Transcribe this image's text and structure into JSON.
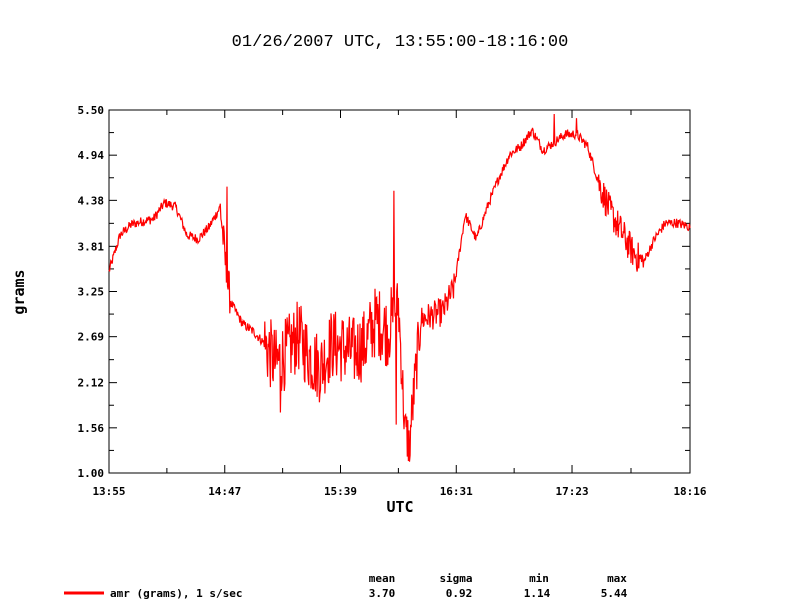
{
  "chart_data": {
    "type": "line",
    "title": "01/26/2007  UTC, 13:55:00-18:16:00",
    "xlabel": "UTC",
    "ylabel": "grams",
    "xlim": [
      "13:55",
      "18:16"
    ],
    "ylim": [
      1.0,
      5.5
    ],
    "x_ticks": [
      "13:55",
      "14:47",
      "15:39",
      "16:31",
      "17:23",
      "18:16"
    ],
    "y_ticks": [
      "1.00",
      "1.56",
      "2.12",
      "2.69",
      "3.25",
      "3.81",
      "4.38",
      "4.94",
      "5.50"
    ],
    "grid": false,
    "series": [
      {
        "name": "amr (grams), 1 s/sec",
        "color": "#ff0000",
        "x": [
          "13:55",
          "14:00",
          "14:05",
          "14:10",
          "14:15",
          "14:20",
          "14:25",
          "14:30",
          "14:35",
          "14:40",
          "14:45",
          "14:48",
          "14:50",
          "14:55",
          "15:00",
          "15:05",
          "15:10",
          "15:15",
          "15:20",
          "15:25",
          "15:30",
          "15:35",
          "15:40",
          "15:45",
          "15:50",
          "15:55",
          "16:00",
          "16:05",
          "16:08",
          "16:10",
          "16:15",
          "16:20",
          "16:25",
          "16:30",
          "16:35",
          "16:40",
          "16:45",
          "16:50",
          "16:55",
          "17:00",
          "17:05",
          "17:10",
          "17:15",
          "17:20",
          "17:25",
          "17:30",
          "17:35",
          "17:40",
          "17:45",
          "17:50",
          "17:55",
          "18:00",
          "18:05",
          "18:10",
          "18:16"
        ],
        "values": [
          3.5,
          3.95,
          4.08,
          4.12,
          4.15,
          4.35,
          4.3,
          3.95,
          3.9,
          4.05,
          4.3,
          3.4,
          3.1,
          2.85,
          2.75,
          2.6,
          2.35,
          2.5,
          2.7,
          2.45,
          2.3,
          2.6,
          2.55,
          2.5,
          2.6,
          2.9,
          2.75,
          3.1,
          1.5,
          1.4,
          2.9,
          2.95,
          3.0,
          3.3,
          4.2,
          3.9,
          4.3,
          4.65,
          4.95,
          5.05,
          5.25,
          5.0,
          5.1,
          5.2,
          5.2,
          5.05,
          4.6,
          4.25,
          4.0,
          3.75,
          3.6,
          3.9,
          4.1,
          4.1,
          4.05
        ]
      }
    ],
    "stats": {
      "headers": [
        "mean",
        "sigma",
        "min",
        "max"
      ],
      "values": [
        "3.70",
        "0.92",
        "1.14",
        "5.44"
      ]
    }
  }
}
